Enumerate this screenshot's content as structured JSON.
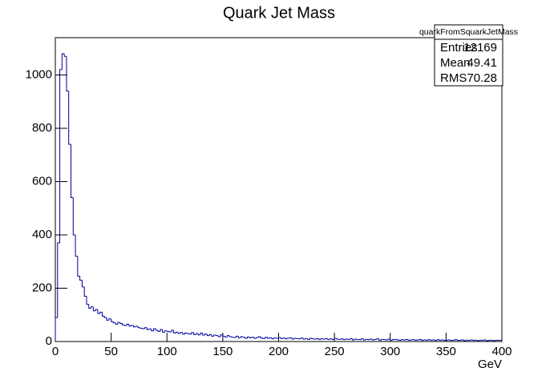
{
  "chart_data": {
    "type": "histogram",
    "title": "Quark Jet Mass",
    "x_label": "GeV",
    "color": "#000099",
    "bins": [
      0,
      2,
      4,
      6,
      8,
      10,
      12,
      14,
      16,
      18,
      20,
      22,
      24,
      26,
      28,
      30,
      32,
      34,
      36,
      38,
      40,
      42,
      44,
      46,
      48,
      50,
      52,
      54,
      56,
      58,
      60,
      62,
      64,
      66,
      68,
      70,
      72,
      74,
      76,
      78,
      80,
      82,
      84,
      86,
      88,
      90,
      92,
      94,
      96,
      98,
      100,
      102,
      104,
      106,
      108,
      110,
      112,
      114,
      116,
      118,
      120,
      122,
      124,
      126,
      128,
      130,
      132,
      134,
      136,
      138,
      140,
      142,
      144,
      146,
      148,
      150,
      152,
      154,
      156,
      158,
      160,
      162,
      164,
      166,
      168,
      170,
      172,
      174,
      176,
      178,
      180,
      182,
      184,
      186,
      188,
      190,
      192,
      194,
      196,
      198,
      200,
      202,
      204,
      206,
      208,
      210,
      212,
      214,
      216,
      218,
      220,
      222,
      224,
      226,
      228,
      230,
      232,
      234,
      236,
      238,
      240,
      242,
      244,
      246,
      248,
      250,
      252,
      254,
      256,
      258,
      260,
      262,
      264,
      266,
      268,
      270,
      272,
      274,
      276,
      278,
      280,
      282,
      284,
      286,
      288,
      290,
      292,
      294,
      296,
      298,
      300,
      302,
      304,
      306,
      308,
      310,
      312,
      314,
      316,
      318,
      320,
      322,
      324,
      326,
      328,
      330,
      332,
      334,
      336,
      338,
      340,
      342,
      344,
      346,
      348,
      350,
      352,
      354,
      356,
      358,
      360,
      362,
      364,
      366,
      368,
      370,
      372,
      374,
      376,
      378,
      380,
      382,
      384,
      386,
      388,
      390,
      392,
      394,
      396,
      398,
      400
    ],
    "values": [
      90,
      370,
      1020,
      1080,
      1070,
      940,
      740,
      540,
      400,
      320,
      245,
      230,
      205,
      170,
      140,
      125,
      130,
      115,
      120,
      105,
      110,
      95,
      90,
      80,
      85,
      75,
      70,
      65,
      72,
      68,
      62,
      60,
      65,
      58,
      60,
      55,
      57,
      52,
      50,
      48,
      52,
      45,
      47,
      40,
      48,
      42,
      38,
      45,
      35,
      40,
      38,
      36,
      42,
      32,
      35,
      30,
      34,
      28,
      32,
      30,
      28,
      34,
      26,
      30,
      25,
      32,
      24,
      28,
      22,
      26,
      20,
      24,
      22,
      18,
      25,
      20,
      17,
      22,
      18,
      16,
      15,
      20,
      14,
      18,
      16,
      12,
      17,
      14,
      16,
      12,
      15,
      18,
      13,
      11,
      16,
      12,
      14,
      10,
      13,
      12,
      15,
      11,
      13,
      10,
      12,
      14,
      9,
      12,
      11,
      10,
      13,
      9,
      11,
      8,
      12,
      10,
      9,
      11,
      8,
      10,
      9,
      11,
      8,
      10,
      7,
      12,
      9,
      8,
      10,
      7,
      9,
      8,
      11,
      6,
      9,
      8,
      7,
      10,
      6,
      8,
      7,
      9,
      6,
      8,
      10,
      5,
      8,
      7,
      6,
      9,
      5,
      7,
      8,
      6,
      5,
      7,
      6,
      8,
      5,
      6,
      7,
      5,
      6,
      8,
      4,
      6,
      5,
      7,
      5,
      6,
      4,
      7,
      5,
      6,
      4,
      5,
      6,
      4,
      5,
      7,
      4,
      5,
      6,
      3,
      5,
      4,
      6,
      4,
      5,
      3,
      5,
      4,
      6,
      3,
      4,
      5,
      3,
      4,
      5,
      4
    ],
    "xlim": [
      0,
      400
    ],
    "xticks": [
      0,
      50,
      100,
      150,
      200,
      250,
      300,
      350,
      400
    ],
    "ylim": [
      0,
      1140
    ],
    "yticks": [
      0,
      200,
      400,
      600,
      800,
      1000
    ],
    "stats": {
      "title": "quarkFromSquarkJetMass",
      "rows": [
        [
          "Entries",
          12169
        ],
        [
          "Mean",
          49.41
        ],
        [
          "RMS",
          70.28
        ]
      ]
    }
  }
}
